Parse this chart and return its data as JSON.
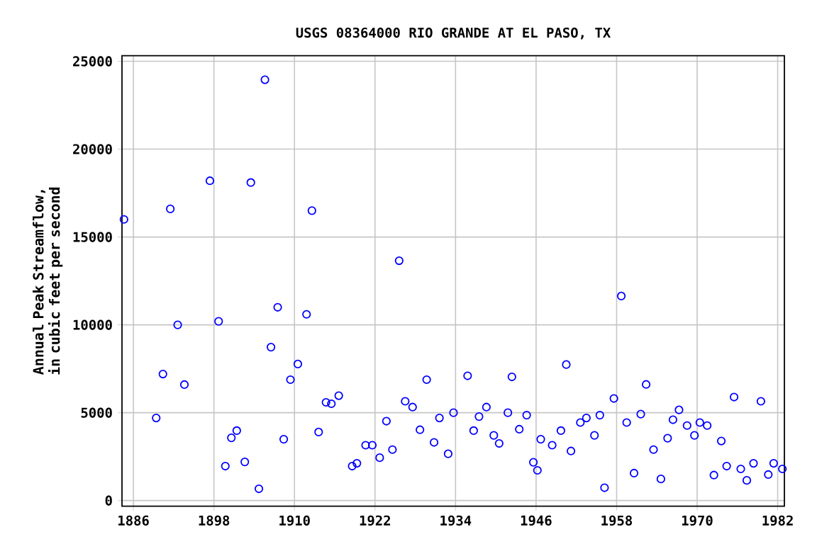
{
  "chart_data": {
    "type": "scatter",
    "title": "USGS 08364000 RIO GRANDE AT EL PASO, TX",
    "ylabel": "Annual Peak Streamflow, in cubic feet per second",
    "series": [
      {
        "color": "#0000ff",
        "x": [
          1884.6,
          1889.4,
          1890.4,
          1891.5,
          1892.6,
          1893.6,
          1897.4,
          1898.7,
          1899.7,
          1900.6,
          1901.4,
          1902.6,
          1903.5,
          1904.7,
          1905.6,
          1906.5,
          1907.5,
          1908.4,
          1909.4,
          1910.5,
          1911.8,
          1912.6,
          1913.6,
          1914.7,
          1915.5,
          1916.6,
          1918.6,
          1919.3,
          1920.6,
          1921.6,
          1922.7,
          1923.7,
          1924.6,
          1925.6,
          1926.5,
          1927.6,
          1928.7,
          1929.7,
          1930.8,
          1931.6,
          1932.9,
          1933.7,
          1935.8,
          1936.7,
          1937.5,
          1938.6,
          1939.7,
          1940.5,
          1941.8,
          1942.4,
          1943.5,
          1944.6,
          1945.6,
          1946.2,
          1946.7,
          1948.4,
          1949.7,
          1950.5,
          1951.2,
          1952.6,
          1953.5,
          1954.7,
          1955.5,
          1956.2,
          1957.6,
          1958.7,
          1959.5,
          1960.6,
          1961.6,
          1962.4,
          1963.5,
          1964.6,
          1965.6,
          1966.4,
          1967.3,
          1968.5,
          1969.6,
          1970.4,
          1971.5,
          1972.5,
          1973.6,
          1974.4,
          1975.5,
          1976.5,
          1977.4,
          1978.4,
          1979.5,
          1980.6,
          1981.4,
          1982.7
        ],
        "values": [
          16000,
          4700,
          7200,
          16600,
          10000,
          6600,
          18200,
          10200,
          1960,
          3570,
          3980,
          2200,
          18100,
          670,
          23950,
          8730,
          11000,
          3490,
          6880,
          7770,
          10600,
          16500,
          3900,
          5590,
          5510,
          5970,
          1960,
          2120,
          3150,
          3150,
          2440,
          4520,
          2900,
          13650,
          5650,
          5320,
          4030,
          6880,
          3310,
          4700,
          2660,
          5000,
          7100,
          3980,
          4780,
          5320,
          3710,
          3250,
          5000,
          7040,
          4060,
          4860,
          2180,
          1720,
          3490,
          3150,
          3980,
          7740,
          2820,
          4440,
          4700,
          3710,
          4860,
          730,
          5810,
          11640,
          4440,
          1560,
          4920,
          6610,
          2900,
          1230,
          3550,
          4600,
          5160,
          4270,
          3710,
          4440,
          4270,
          1450,
          3390,
          1960,
          5890,
          1800,
          1150,
          2120,
          5650,
          1480,
          2120,
          1800
        ]
      }
    ],
    "xlim": [
      1884.3,
      1983.0
    ],
    "ylim": [
      -320,
      25320
    ],
    "xticks": [
      1886,
      1898,
      1910,
      1922,
      1934,
      1946,
      1958,
      1970,
      1982
    ],
    "yticks": [
      0,
      5000,
      10000,
      15000,
      20000,
      25000
    ],
    "grid": true,
    "marker": "circle"
  }
}
